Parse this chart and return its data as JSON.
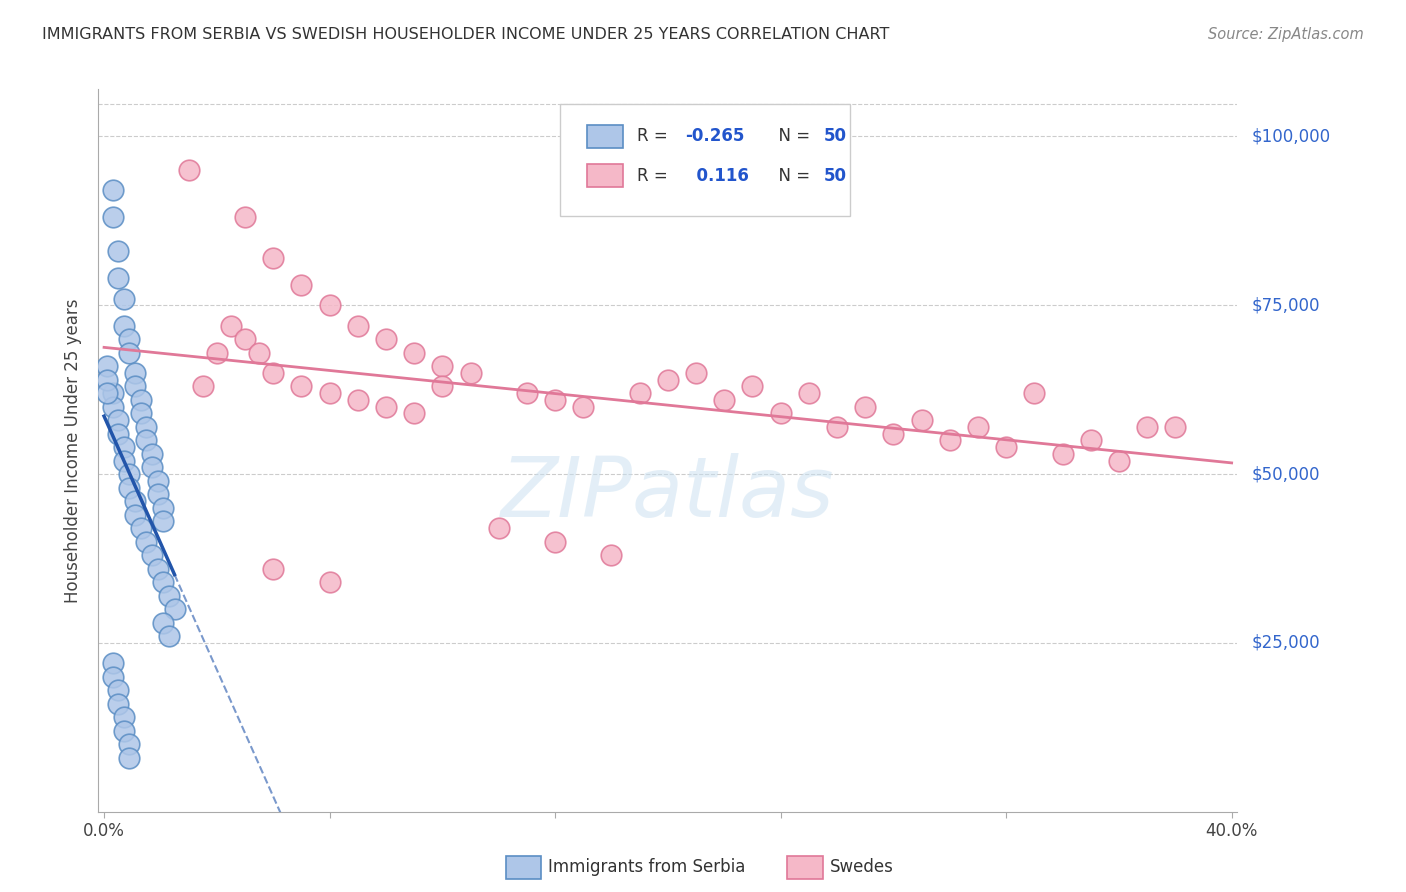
{
  "title": "IMMIGRANTS FROM SERBIA VS SWEDISH HOUSEHOLDER INCOME UNDER 25 YEARS CORRELATION CHART",
  "source": "Source: ZipAtlas.com",
  "ylabel": "Householder Income Under 25 years",
  "legend_label1": "Immigrants from Serbia",
  "legend_label2": "Swedes",
  "ytick_labels": [
    "$25,000",
    "$50,000",
    "$75,000",
    "$100,000"
  ],
  "ytick_values": [
    25000,
    50000,
    75000,
    100000
  ],
  "xmin": 0.0,
  "xmax": 0.4,
  "ymin": 0,
  "ymax": 107000,
  "color_serbia": "#aec6e8",
  "color_serbia_edge": "#5b8ec4",
  "color_swedes": "#f5b8c8",
  "color_swedes_edge": "#e07898",
  "color_regression_serbia": "#2255aa",
  "color_regression_swedes": "#e07898",
  "watermark_color": "#c8dff0",
  "serbia_x": [
    0.003,
    0.003,
    0.005,
    0.005,
    0.007,
    0.007,
    0.009,
    0.009,
    0.011,
    0.011,
    0.013,
    0.013,
    0.015,
    0.015,
    0.017,
    0.017,
    0.019,
    0.019,
    0.021,
    0.021,
    0.003,
    0.003,
    0.005,
    0.005,
    0.007,
    0.007,
    0.009,
    0.009,
    0.011,
    0.011,
    0.013,
    0.015,
    0.017,
    0.019,
    0.021,
    0.023,
    0.025,
    0.001,
    0.001,
    0.001,
    0.003,
    0.003,
    0.005,
    0.005,
    0.007,
    0.007,
    0.009,
    0.009,
    0.021,
    0.023
  ],
  "serbia_y": [
    92000,
    88000,
    83000,
    79000,
    76000,
    72000,
    70000,
    68000,
    65000,
    63000,
    61000,
    59000,
    57000,
    55000,
    53000,
    51000,
    49000,
    47000,
    45000,
    43000,
    62000,
    60000,
    58000,
    56000,
    54000,
    52000,
    50000,
    48000,
    46000,
    44000,
    42000,
    40000,
    38000,
    36000,
    34000,
    32000,
    30000,
    66000,
    64000,
    62000,
    22000,
    20000,
    18000,
    16000,
    14000,
    12000,
    10000,
    8000,
    28000,
    26000
  ],
  "swedes_x": [
    0.03,
    0.05,
    0.06,
    0.07,
    0.08,
    0.09,
    0.1,
    0.11,
    0.12,
    0.13,
    0.035,
    0.04,
    0.045,
    0.05,
    0.055,
    0.06,
    0.07,
    0.08,
    0.09,
    0.1,
    0.11,
    0.12,
    0.15,
    0.16,
    0.17,
    0.19,
    0.21,
    0.23,
    0.25,
    0.27,
    0.29,
    0.31,
    0.33,
    0.35,
    0.37,
    0.2,
    0.22,
    0.24,
    0.26,
    0.28,
    0.3,
    0.32,
    0.34,
    0.36,
    0.38,
    0.14,
    0.16,
    0.18,
    0.06,
    0.08
  ],
  "swedes_y": [
    95000,
    88000,
    82000,
    78000,
    75000,
    72000,
    70000,
    68000,
    66000,
    65000,
    63000,
    68000,
    72000,
    70000,
    68000,
    65000,
    63000,
    62000,
    61000,
    60000,
    59000,
    63000,
    62000,
    61000,
    60000,
    62000,
    65000,
    63000,
    62000,
    60000,
    58000,
    57000,
    62000,
    55000,
    57000,
    64000,
    61000,
    59000,
    57000,
    56000,
    55000,
    54000,
    53000,
    52000,
    57000,
    42000,
    40000,
    38000,
    36000,
    34000
  ]
}
